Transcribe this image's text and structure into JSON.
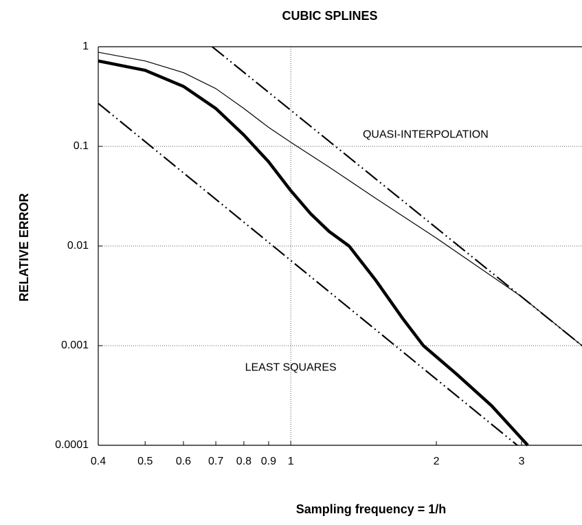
{
  "chart_data": {
    "type": "line",
    "title": "CUBIC SPLINES",
    "xlabel": "Sampling frequency  = 1/h",
    "ylabel": "RELATIVE ERROR",
    "xscale": "log",
    "yscale": "log",
    "xlim": [
      0.4,
      4
    ],
    "ylim": [
      0.0001,
      1
    ],
    "xticks": [
      0.4,
      0.5,
      0.6,
      0.7,
      0.8,
      0.9,
      1,
      2,
      3
    ],
    "yticks": [
      0.0001,
      0.001,
      0.01,
      0.1,
      1
    ],
    "xgrid": [
      1
    ],
    "ygrid": true,
    "annotations": [
      {
        "text": "QUASI-INTERPOLATION",
        "x": 1.9,
        "y": 0.13
      },
      {
        "text": "LEAST SQUARES",
        "x": 1.0,
        "y": 0.0006
      }
    ],
    "series": [
      {
        "color": "#000000",
        "style": "thick",
        "x": [
          0.4,
          0.5,
          0.6,
          0.7,
          0.8,
          0.9,
          1.0,
          1.1,
          1.2,
          1.32,
          1.5,
          1.7,
          1.88,
          2.2,
          2.6,
          3.09
        ],
        "values": [
          0.72,
          0.58,
          0.4,
          0.24,
          0.13,
          0.07,
          0.036,
          0.021,
          0.014,
          0.01,
          0.0045,
          0.0019,
          0.001,
          0.00052,
          0.00025,
          0.0001
        ]
      },
      {
        "color": "#000000",
        "style": "thin",
        "x": [
          0.4,
          0.5,
          0.6,
          0.7,
          0.8,
          0.9,
          1.0,
          1.2,
          1.5,
          2.0,
          3.0,
          4.0
        ],
        "values": [
          0.88,
          0.72,
          0.55,
          0.38,
          0.24,
          0.155,
          0.11,
          0.062,
          0.03,
          0.012,
          0.0031,
          0.001
        ]
      },
      {
        "color": "#000000",
        "style": "dashdot",
        "x": [
          0.688,
          4.0
        ],
        "values": [
          1,
          0.001
        ]
      },
      {
        "color": "#000000",
        "style": "dashdot",
        "x": [
          0.4,
          2.94
        ],
        "values": [
          0.27,
          0.0001
        ]
      }
    ]
  }
}
